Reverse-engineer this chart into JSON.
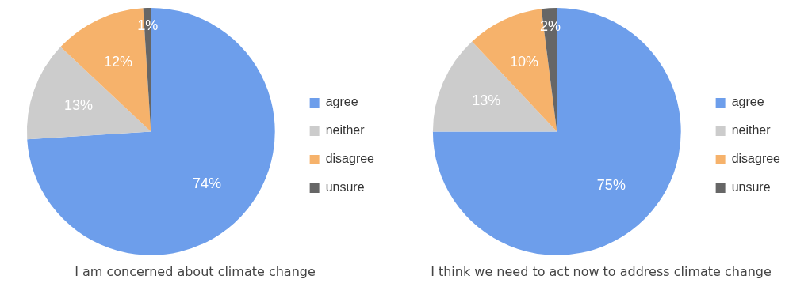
{
  "chart_data": [
    {
      "type": "pie",
      "title": "I am concerned about climate change",
      "categories": [
        "agree",
        "neither",
        "disagree",
        "unsure"
      ],
      "values": [
        74,
        13,
        12,
        1
      ],
      "colors": [
        "#6d9eeb",
        "#cccccc",
        "#f6b26b",
        "#666666"
      ],
      "value_labels": [
        "74%",
        "13%",
        "12%",
        "1%"
      ],
      "legend": "right"
    },
    {
      "type": "pie",
      "title": "I think we need to act now to address climate change",
      "categories": [
        "agree",
        "neither",
        "disagree",
        "unsure"
      ],
      "values": [
        75,
        13,
        10,
        2
      ],
      "colors": [
        "#6d9eeb",
        "#cccccc",
        "#f6b26b",
        "#666666"
      ],
      "value_labels": [
        "75%",
        "13%",
        "10%",
        "2%"
      ],
      "legend": "right"
    }
  ]
}
